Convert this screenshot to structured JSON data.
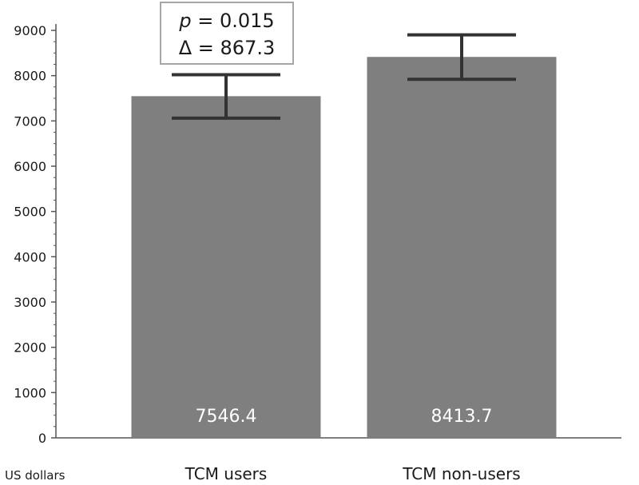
{
  "chart_data": {
    "type": "bar",
    "categories": [
      "TCM users",
      "TCM non-users"
    ],
    "values": [
      7546.4,
      8413.7
    ],
    "value_labels": [
      "7546.4",
      "8413.7"
    ],
    "error_bars": [
      {
        "low": 7060,
        "high": 8020
      },
      {
        "low": 7920,
        "high": 8900
      }
    ],
    "ylim": [
      0,
      9000
    ],
    "yticks": [
      0,
      1000,
      2000,
      3000,
      4000,
      5000,
      6000,
      7000,
      8000,
      9000
    ],
    "ylabel": "US dollars",
    "xlabel": "",
    "title": "",
    "grid": false,
    "annotation": {
      "line1_var": "p",
      "line1_value": " = 0.015",
      "line2": "Δ = 867.3"
    },
    "colors": {
      "bar": "#7f7f7f",
      "error_bar": "#333333",
      "axis": "#555555",
      "annotation_border": "#a6a6a6"
    }
  }
}
